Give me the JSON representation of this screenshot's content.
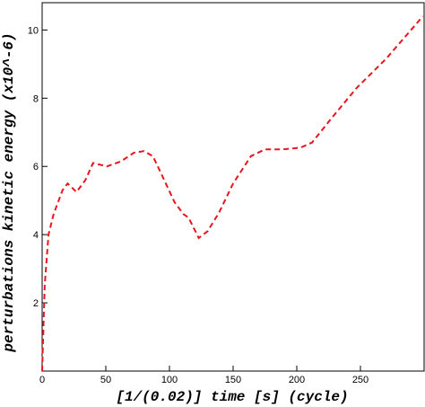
{
  "chart_data": {
    "type": "line",
    "x_label": "[1/(0.02)] time [s] (cycle)",
    "y_label": "perturbations kinetic energy (x10^-6)",
    "xlim": [
      0,
      300
    ],
    "xticks": [
      0,
      50,
      100,
      150,
      200,
      250
    ],
    "ylim": [
      0,
      10.8
    ],
    "yticks": [
      2,
      4,
      6,
      8,
      10
    ],
    "x": [
      0,
      2,
      5,
      9,
      16,
      20,
      27,
      34,
      40,
      51,
      62,
      72,
      80,
      87,
      94,
      104,
      111,
      115,
      123,
      130,
      139,
      150,
      164,
      175,
      189,
      203,
      212,
      227,
      247,
      270,
      299
    ],
    "series": [
      {
        "color": "#e8141e",
        "values": [
          0,
          2.5,
          4.0,
          4.6,
          5.3,
          5.5,
          5.25,
          5.6,
          6.1,
          6.0,
          6.15,
          6.4,
          6.45,
          6.3,
          5.75,
          4.95,
          4.6,
          4.5,
          3.9,
          4.1,
          4.65,
          5.5,
          6.3,
          6.5,
          6.5,
          6.55,
          6.7,
          7.4,
          8.3,
          9.15,
          10.4
        ]
      }
    ]
  }
}
